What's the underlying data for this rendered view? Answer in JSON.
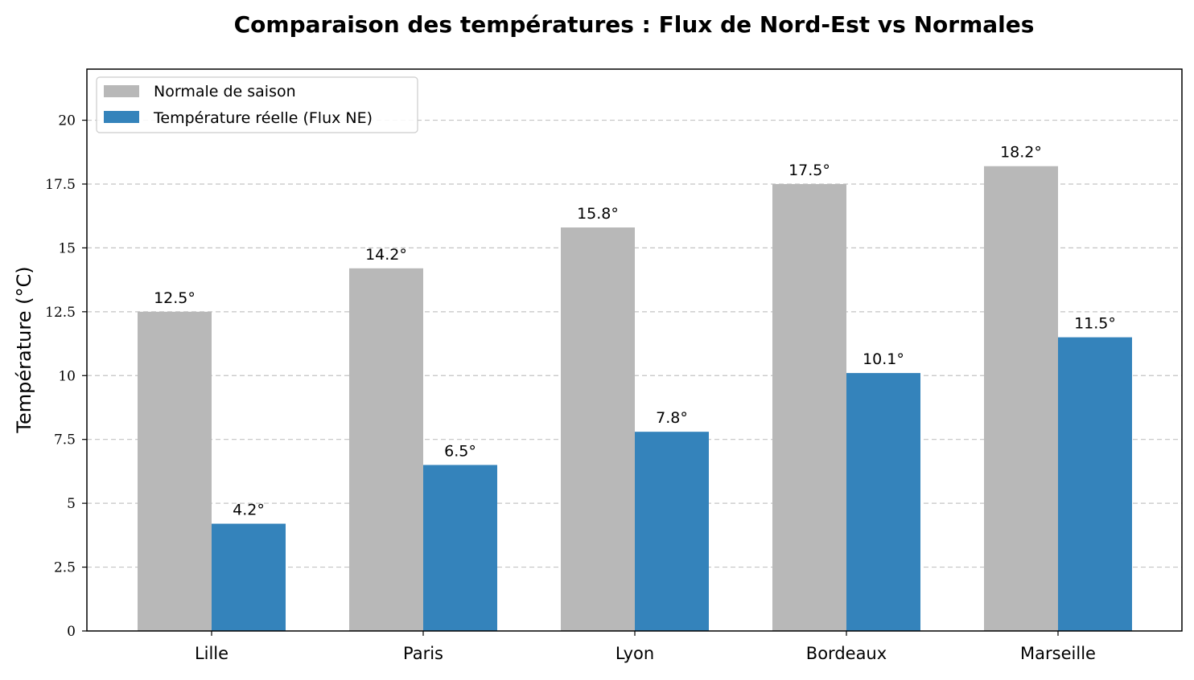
{
  "chart_data": {
    "type": "bar",
    "title": "Comparaison des températures : Flux de Nord-Est vs Normales",
    "xlabel": "",
    "ylabel": "Température (°C)",
    "ylim": [
      0,
      22
    ],
    "yticks": [
      0,
      2.5,
      5,
      7.5,
      10,
      12.5,
      15,
      17.5,
      20
    ],
    "ytick_labels": [
      "0",
      "2.5",
      "5",
      "7.5",
      "10",
      "12.5",
      "15",
      "17.5",
      "20"
    ],
    "grid": "y-dashed",
    "legend_position": "top-left",
    "categories": [
      "Lille",
      "Paris",
      "Lyon",
      "Bordeaux",
      "Marseille"
    ],
    "series": [
      {
        "name": "Normale de saison",
        "color": "#b8b8b8",
        "values": [
          12.5,
          14.2,
          15.8,
          17.5,
          18.2
        ],
        "labels": [
          "12.5°",
          "14.2°",
          "15.8°",
          "17.5°",
          "18.2°"
        ]
      },
      {
        "name": "Température réelle (Flux NE)",
        "color": "#3483bb",
        "values": [
          4.2,
          6.5,
          7.8,
          10.1,
          11.5
        ],
        "labels": [
          "4.2°",
          "6.5°",
          "7.8°",
          "10.1°",
          "11.5°"
        ]
      }
    ]
  }
}
